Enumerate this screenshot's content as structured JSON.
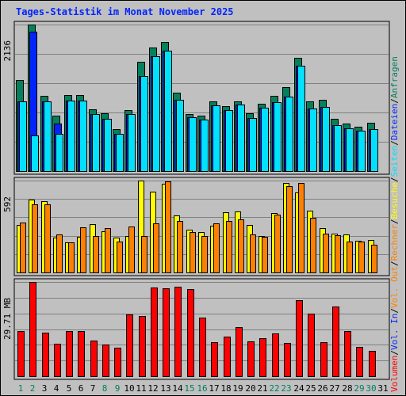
{
  "chart_data": {
    "type": "bar",
    "title": "Tages-Statistik im Monat November 2025",
    "categories": [
      "1",
      "2",
      "3",
      "4",
      "5",
      "6",
      "7",
      "8",
      "9",
      "10",
      "11",
      "12",
      "13",
      "14",
      "15",
      "16",
      "17",
      "18",
      "19",
      "20",
      "21",
      "22",
      "23",
      "24",
      "25",
      "26",
      "27",
      "28",
      "29",
      "30",
      "31"
    ],
    "weekend_days": [
      "1",
      "2",
      "8",
      "9",
      "15",
      "16",
      "22",
      "23",
      "29",
      "30"
    ],
    "panels": [
      {
        "name": "hits-pages-files",
        "ymax_label": "2136",
        "ylim": [
          0,
          2136
        ],
        "series": [
          {
            "name": "Anfragen",
            "color": "#00805c",
            "values": [
              1326,
              2136,
              1095,
              804,
              1112,
              1112,
              897,
              843,
              613,
              887,
              1591,
              1806,
              1886,
              1138,
              834,
              812,
              1020,
              942,
              1014,
              847,
              984,
              1099,
              1224,
              1655,
              1013,
              1035,
              760,
              688,
              650,
              706
            ]
          },
          {
            "name": "Dateien",
            "color": "#0024ff",
            "values": [
              1020,
              2029,
              1021,
              690,
              1024,
              1025,
              834,
              766,
              548,
              837,
              1384,
              1679,
              1755,
              1036,
              780,
              750,
              959,
              885,
              965,
              777,
              919,
              1000,
              1084,
              1540,
              914,
              939,
              670,
              628,
              584,
              610
            ]
          },
          {
            "name": "Seiten",
            "color": "#00e0ff",
            "values": [
              1020,
              517,
              1021,
              537,
              1024,
              1025,
              834,
              766,
              548,
              837,
              1384,
              1679,
              1755,
              1036,
              780,
              750,
              959,
              885,
              965,
              777,
              919,
              1000,
              1084,
              1540,
              914,
              939,
              670,
              628,
              584,
              610
            ]
          }
        ]
      },
      {
        "name": "visits-sites",
        "ymax_label": "592",
        "ylim": [
          0,
          592
        ],
        "series": [
          {
            "name": "Besuche",
            "color": "#ffff00",
            "values": [
              304,
              470,
              460,
              227,
              196,
              228,
              309,
              266,
              227,
              236,
              592,
              523,
              572,
              369,
              276,
              258,
              303,
              388,
              395,
              308,
              235,
              385,
              577,
              516,
              398,
              284,
              248,
              247,
              205,
              210
            ]
          },
          {
            "name": "Rechner",
            "color": "#ff8000",
            "values": [
              322,
              438,
              440,
              245,
              196,
              289,
              237,
              285,
              200,
              297,
              235,
              315,
              588,
              332,
              258,
              237,
              317,
              332,
              344,
              243,
              230,
              371,
              555,
              575,
              354,
              250,
              241,
              200,
              201,
              178
            ]
          }
        ]
      },
      {
        "name": "volume",
        "ymax_label": "29.71 MB",
        "ylim": [
          0,
          29.71
        ],
        "series": [
          {
            "name": "Volumen",
            "color": "#ff0000",
            "values": [
              14.3,
              29.7,
              13.8,
              10.2,
              14.2,
              14.2,
              11.3,
              10.1,
              8.9,
              19.4,
              18.9,
              28.0,
              27.6,
              28.3,
              27.4,
              18.4,
              10.8,
              12.4,
              15.4,
              11.1,
              11.9,
              13.6,
              10.6,
              23.9,
              19.6,
              10.8,
              21.9,
              14.2,
              9.3,
              7.9
            ]
          }
        ]
      }
    ],
    "right_labels": [
      {
        "text": "Anfragen",
        "color": "#00805c"
      },
      {
        "text": "Dateien",
        "color": "#0024ff"
      },
      {
        "text": "Seiten",
        "color": "#00e0ff"
      },
      {
        "text": "Besuche",
        "color": "#ffff00"
      },
      {
        "text": "Rechner",
        "color": "#ff8000"
      },
      {
        "text": "Vol. Out",
        "color": "#ff8000"
      },
      {
        "text": "Vol. In",
        "color": "#0024ff"
      },
      {
        "text": "Volumen",
        "color": "#ff0000"
      }
    ],
    "separator": "/",
    "colors": {
      "background": "#c0c0c0",
      "title": "#0024ff",
      "grid": "#808080",
      "weekday_label": "#000000",
      "weekend_label": "#00805c"
    }
  }
}
